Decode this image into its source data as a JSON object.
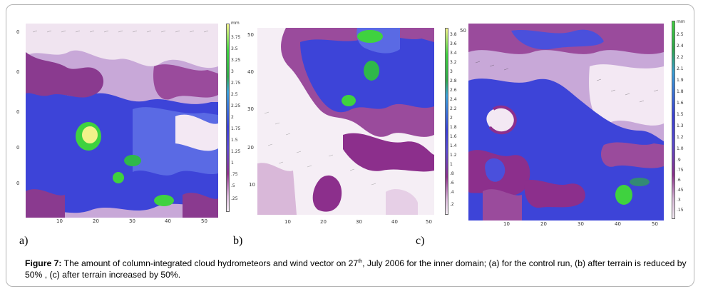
{
  "figure": {
    "panels": [
      {
        "id": "a",
        "label": "a)",
        "x_ticks": [
          "10",
          "20",
          "30",
          "40",
          "50"
        ],
        "y_ticks": [
          "0",
          "0",
          "0",
          "0",
          "0"
        ],
        "colorbar": {
          "unit": "mm",
          "levels": [
            "3.75",
            "3.5",
            "3.25",
            "3",
            "2.75",
            "2.5",
            "2.25",
            "2",
            "1.75",
            "1.5",
            "1.25",
            "1",
            ".75",
            ".5",
            ".25"
          ]
        }
      },
      {
        "id": "b",
        "label": "b)",
        "x_ticks": [
          "10",
          "20",
          "30",
          "40",
          "50"
        ],
        "y_ticks": [
          "50",
          "40",
          "30",
          "20",
          "10"
        ],
        "colorbar": {
          "unit": "",
          "levels": [
            "3.8",
            "3.6",
            "3.4",
            "3.2",
            "3",
            "2.8",
            "2.6",
            "2.4",
            "2.2",
            "2",
            "1.8",
            "1.6",
            "1.4",
            "1.2",
            "1",
            ".8",
            ".6",
            ".4",
            ".2"
          ]
        }
      },
      {
        "id": "c",
        "label": "c)",
        "x_ticks": [
          "10",
          "20",
          "30",
          "40",
          "50"
        ],
        "y_ticks": [
          "50"
        ],
        "colorbar": {
          "unit": "mm",
          "levels": [
            "2.5",
            "2.4",
            "2.2",
            "2.1",
            "1.9",
            "1.8",
            "1.6",
            "1.5",
            "1.3",
            "1.2",
            "1.0",
            ".9",
            ".75",
            ".6",
            ".45",
            ".3",
            ".15"
          ]
        }
      }
    ],
    "caption": {
      "label": "Figure 7:",
      "text_part1": " The amount of column-integrated cloud hydrometeors and wind vector on 27",
      "superscript": "th",
      "text_part2": ", July 2006 for the inner domain; (a) for the control run, (b) after terrain is reduced by 50% , (c)  after terrain increased by 50%."
    },
    "colors": {
      "light": "#f4ecf4",
      "lavender": "#d9b8d9",
      "purple": "#8c2f8c",
      "blue": "#3a3fd6",
      "lightblue": "#6d7fe8",
      "green": "#3fd23f",
      "yellow": "#f2f28a"
    }
  }
}
